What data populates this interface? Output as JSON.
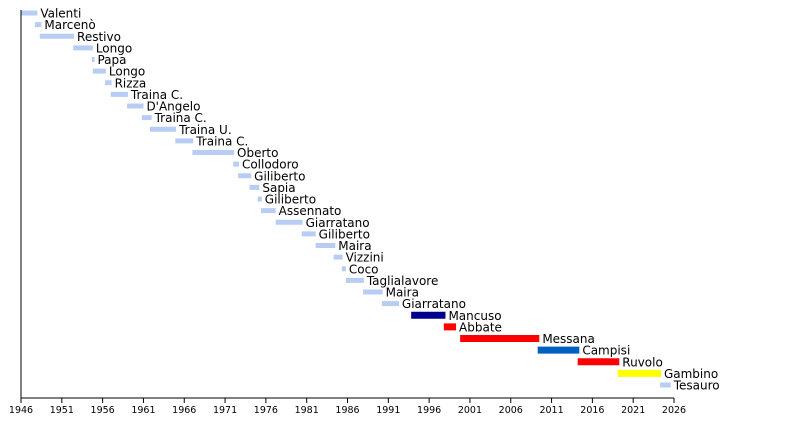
{
  "chart_data": {
    "type": "bar",
    "orientation": "horizontal-timeline",
    "title": "",
    "xlabel": "",
    "ylabel": "",
    "xlim": [
      1946,
      2026
    ],
    "x_ticks": [
      1946,
      1951,
      1956,
      1961,
      1966,
      1971,
      1976,
      1981,
      1986,
      1991,
      1996,
      2001,
      2006,
      2011,
      2016,
      2021,
      2026
    ],
    "grid": false,
    "default_color": "#b8cdf3",
    "series": [
      {
        "name": "Valenti",
        "start": 1946.0,
        "end": 1948.0
      },
      {
        "name": "Marcenò",
        "start": 1947.7,
        "end": 1948.5
      },
      {
        "name": "Restivo",
        "start": 1948.3,
        "end": 1952.5
      },
      {
        "name": "Longo",
        "start": 1952.4,
        "end": 1954.8
      },
      {
        "name": "Papa",
        "start": 1954.7,
        "end": 1955.0
      },
      {
        "name": "Longo",
        "start": 1954.8,
        "end": 1956.4
      },
      {
        "name": "Rizza",
        "start": 1956.3,
        "end": 1957.1
      },
      {
        "name": "Traina C.",
        "start": 1957.0,
        "end": 1959.1
      },
      {
        "name": "D'Angelo",
        "start": 1959.0,
        "end": 1961.0
      },
      {
        "name": "Traina C.",
        "start": 1960.8,
        "end": 1962.0
      },
      {
        "name": "Traina U.",
        "start": 1961.8,
        "end": 1965.0
      },
      {
        "name": "Traina C.",
        "start": 1964.9,
        "end": 1967.1
      },
      {
        "name": "Oberto",
        "start": 1967.0,
        "end": 1972.1
      },
      {
        "name": "Collodoro",
        "start": 1972.0,
        "end": 1972.7
      },
      {
        "name": "Giliberto",
        "start": 1972.6,
        "end": 1974.2
      },
      {
        "name": "Sapia",
        "start": 1974.0,
        "end": 1975.2
      },
      {
        "name": "Giliberto",
        "start": 1975.0,
        "end": 1975.5
      },
      {
        "name": "Assennato",
        "start": 1975.4,
        "end": 1977.2
      },
      {
        "name": "Giarratano",
        "start": 1977.2,
        "end": 1980.5
      },
      {
        "name": "Giliberto",
        "start": 1980.4,
        "end": 1982.1
      },
      {
        "name": "Maira",
        "start": 1982.1,
        "end": 1984.5
      },
      {
        "name": "Vizzini",
        "start": 1984.3,
        "end": 1985.4
      },
      {
        "name": "Coco",
        "start": 1985.3,
        "end": 1985.8
      },
      {
        "name": "Taglialavore",
        "start": 1985.8,
        "end": 1988.0
      },
      {
        "name": "Maira",
        "start": 1987.9,
        "end": 1990.3
      },
      {
        "name": "Giarratano",
        "start": 1990.2,
        "end": 1992.3
      },
      {
        "name": "Mancuso",
        "start": 1993.8,
        "end": 1998.0,
        "color": "#00008b"
      },
      {
        "name": "Abbate",
        "start": 1997.8,
        "end": 1999.3,
        "color": "#ff0000"
      },
      {
        "name": "Messana",
        "start": 1999.8,
        "end": 2009.5,
        "color": "#ff0000"
      },
      {
        "name": "Campisi",
        "start": 2009.3,
        "end": 2014.4,
        "color": "#0060c0"
      },
      {
        "name": "Ruvolo",
        "start": 2014.2,
        "end": 2019.3,
        "color": "#ff0000"
      },
      {
        "name": "Gambino",
        "start": 2019.1,
        "end": 2024.4,
        "color": "#ffff00"
      },
      {
        "name": "Tesauro",
        "start": 2024.3,
        "end": 2025.6
      }
    ]
  }
}
